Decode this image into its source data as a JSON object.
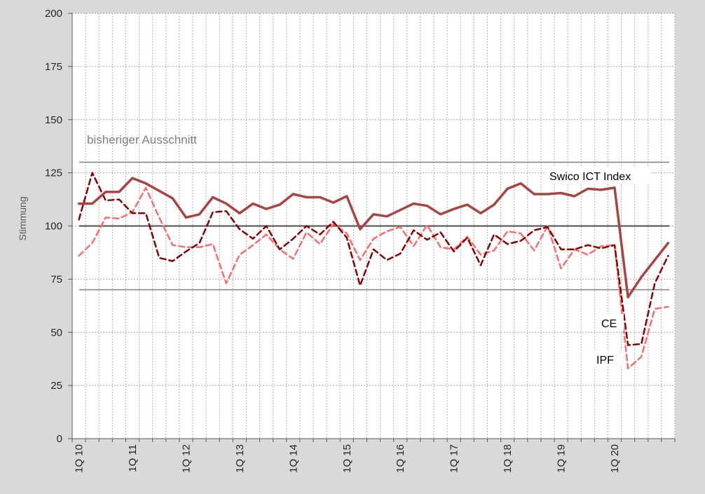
{
  "chart_data": {
    "type": "line",
    "ylabel": "Stimmung",
    "ylim": [
      0,
      200
    ],
    "yticks": [
      0,
      25,
      50,
      75,
      100,
      125,
      150,
      175,
      200
    ],
    "x_tick_labels": [
      {
        "label": "1Q 10",
        "index": 0
      },
      {
        "label": "1Q 11",
        "index": 4
      },
      {
        "label": "1Q 12",
        "index": 8
      },
      {
        "label": "1Q 13",
        "index": 12
      },
      {
        "label": "1Q 14",
        "index": 16
      },
      {
        "label": "1Q 15",
        "index": 20
      },
      {
        "label": "1Q 16",
        "index": 24
      },
      {
        "label": "1Q 17",
        "index": 28
      },
      {
        "label": "1Q 18",
        "index": 32
      },
      {
        "label": "1Q 19",
        "index": 36
      },
      {
        "label": "1Q 20",
        "index": 40
      }
    ],
    "reference_lines": [
      130,
      100,
      70
    ],
    "annotations": {
      "range_label": "bisheriger Ausschnitt",
      "swico_label": "Swico ICT Index",
      "ce_label": "CE",
      "ipf_label": "IPF"
    },
    "series": [
      {
        "name": "Swico ICT Index",
        "color": "#a94442",
        "style": "solid",
        "values": [
          110.5,
          110.5,
          116,
          116,
          122.5,
          120,
          116.5,
          113,
          104,
          105.5,
          113.5,
          110.5,
          106,
          110.5,
          108,
          110,
          115,
          113.5,
          113.5,
          111,
          114,
          98.5,
          105.5,
          104.5,
          107.5,
          110.5,
          109.5,
          105.5,
          108,
          110,
          106,
          110,
          117.5,
          120,
          115,
          115,
          115.5,
          114,
          117.5,
          117,
          118,
          66.5,
          76,
          84,
          92
        ]
      },
      {
        "name": "CE",
        "color": "#8b0000",
        "style": "dashed",
        "values": [
          103,
          125,
          112,
          112.5,
          106,
          106,
          85,
          83.5,
          88,
          92,
          106.5,
          107,
          98.5,
          94,
          100,
          89,
          94,
          100,
          96,
          102,
          94.5,
          72,
          89,
          84,
          87,
          98,
          93.5,
          97,
          88,
          94.5,
          81.5,
          96,
          91.5,
          93,
          98,
          99.5,
          89,
          89,
          91,
          89.5,
          91,
          44,
          44.5,
          73,
          86
        ]
      },
      {
        "name": "IPF",
        "color": "#ff6b6b",
        "style": "dashed",
        "values": [
          86,
          92,
          104,
          103.5,
          106.5,
          118,
          104,
          91,
          90,
          90,
          91.5,
          73,
          86.5,
          91,
          96,
          89,
          84.5,
          97,
          91.5,
          101,
          96.5,
          84,
          94,
          97.5,
          99.5,
          90.5,
          100.5,
          90,
          89,
          95,
          86.5,
          88.5,
          97.5,
          96.5,
          88.5,
          100,
          80,
          89,
          86.5,
          90.5,
          91,
          33,
          38.5,
          61,
          62
        ]
      }
    ]
  }
}
